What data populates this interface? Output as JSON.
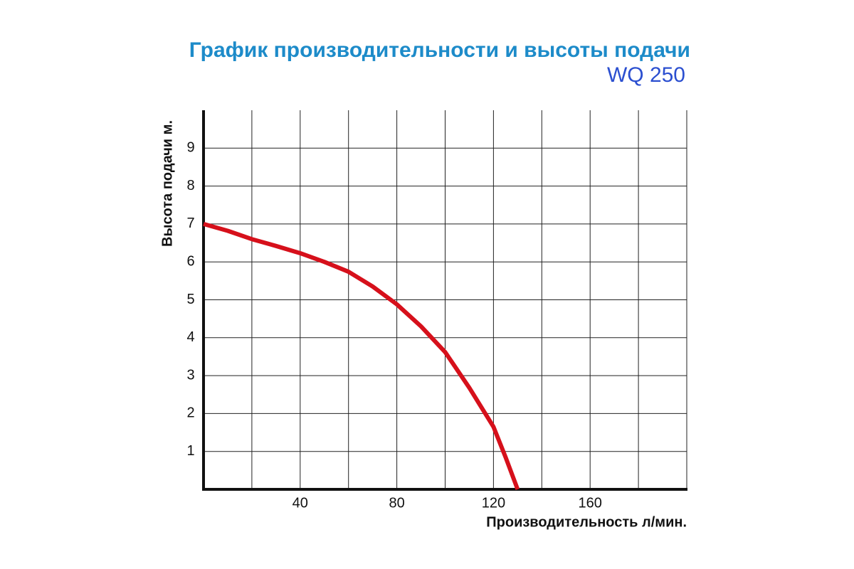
{
  "chart_data": {
    "type": "line",
    "title": "График производительности и высоты подачи",
    "subtitle": "WQ 250",
    "x_label": "Производительность л/мин.",
    "y_label": "Высота подачи м.",
    "xlim": [
      0,
      200
    ],
    "ylim": [
      0,
      10
    ],
    "xticks": [
      {
        "value": 20,
        "label": null
      },
      40,
      {
        "value": 60,
        "label": null
      },
      80,
      {
        "value": 100,
        "label": null
      },
      120,
      {
        "value": 140,
        "label": null
      },
      160,
      {
        "value": 180,
        "label": null
      }
    ],
    "yticks": [
      1,
      2,
      3,
      4,
      5,
      6,
      7,
      8,
      9
    ],
    "grid": true,
    "x": [
      0,
      10,
      20,
      30,
      40,
      50,
      60,
      70,
      80,
      90,
      100,
      110,
      120,
      125,
      130
    ],
    "series": [
      {
        "name": "WQ 250",
        "color": "#d6101b",
        "values": [
          7,
          6.82,
          6.6,
          6.42,
          6.23,
          6.0,
          5.74,
          5.35,
          4.88,
          4.3,
          3.62,
          2.68,
          1.65,
          0.85,
          0
        ]
      }
    ]
  }
}
